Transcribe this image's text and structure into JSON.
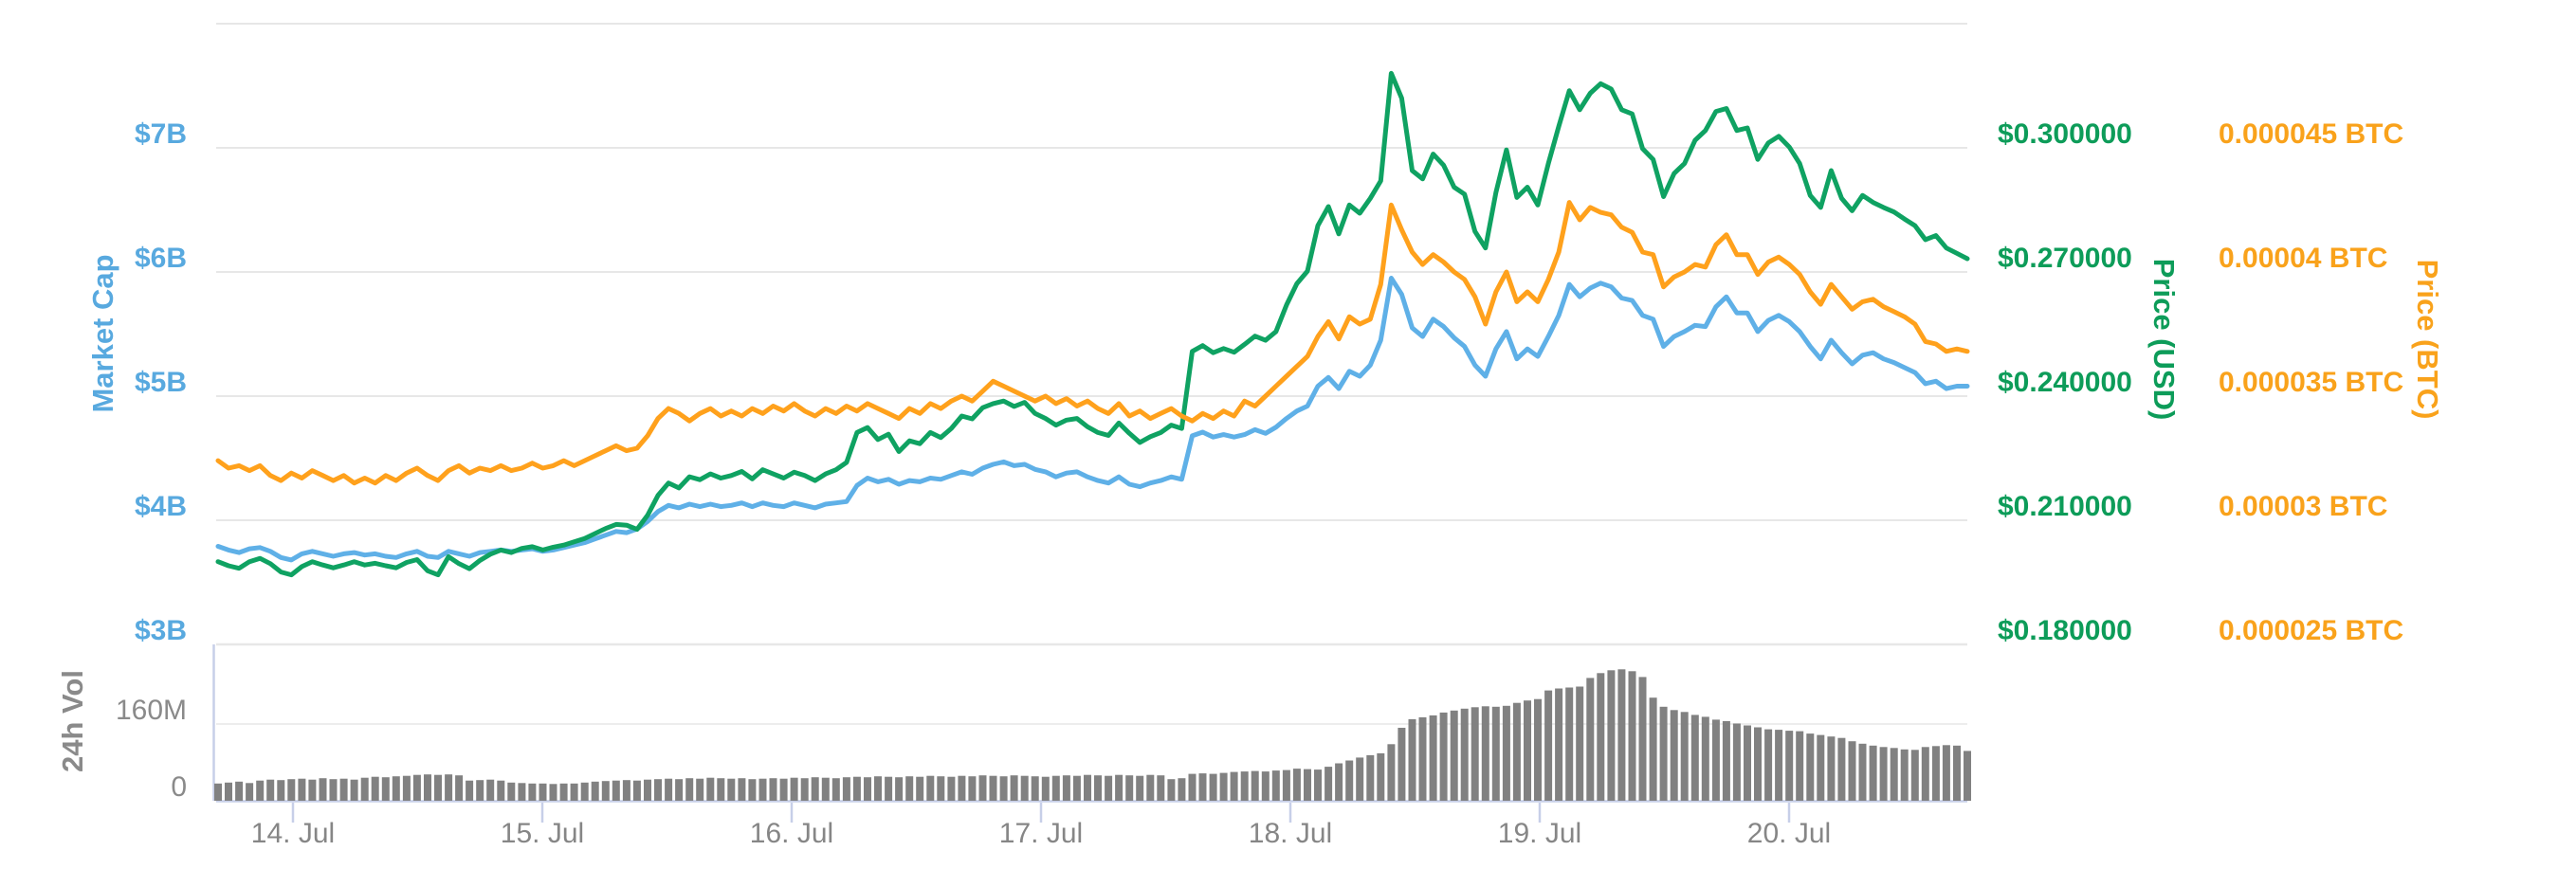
{
  "chart_data": {
    "type": "line",
    "title": "",
    "subtitle": "",
    "legend": "none",
    "grid": true,
    "x_axis": {
      "tick_labels": [
        "14. Jul",
        "15. Jul",
        "16. Jul",
        "17. Jul",
        "18. Jul",
        "19. Jul",
        "20. Jul"
      ],
      "points": 168,
      "note": "about one point per hour, span 13 Jul evening to 20 Jul evening"
    },
    "y_axes": {
      "market_cap": {
        "title": "Market Cap",
        "side": "left",
        "unit": "USD",
        "label_color": "#58a9df",
        "tick_labels": [
          "$3B",
          "$4B",
          "$5B",
          "$6B",
          "$7B"
        ],
        "tick_values": [
          3,
          4,
          5,
          6,
          7
        ],
        "range": [
          3,
          8
        ]
      },
      "price_usd": {
        "title": "Price (USD)",
        "side": "right",
        "unit": "USD",
        "label_color": "#0d9c59",
        "tick_labels": [
          "$0.180000",
          "$0.210000",
          "$0.240000",
          "$0.270000",
          "$0.300000"
        ],
        "tick_values": [
          0.18,
          0.21,
          0.24,
          0.27,
          0.3
        ],
        "range": [
          0.18,
          0.33
        ]
      },
      "price_btc": {
        "title": "Price (BTC)",
        "side": "right",
        "unit": "BTC",
        "label_color": "#f9a21b",
        "tick_labels": [
          "0.000025 BTC",
          "0.00003 BTC",
          "0.000035 BTC",
          "0.00004 BTC",
          "0.000045 BTC"
        ],
        "tick_values": [
          2.5e-05,
          3e-05,
          3.5e-05,
          4e-05,
          4.5e-05
        ],
        "range": [
          2.5e-05,
          5e-05
        ]
      },
      "volume": {
        "title": "24h Vol",
        "side": "left",
        "unit": "USD millions",
        "label_color": "#8a8a8a",
        "tick_labels": [
          "0",
          "160M"
        ],
        "tick_values": [
          0,
          160
        ],
        "range": [
          0,
          326
        ]
      }
    },
    "series": [
      {
        "name": "Market Cap",
        "axis": "market_cap",
        "color": "#5fb0e7",
        "unit": "USD billions",
        "values": [
          3.79,
          3.76,
          3.74,
          3.77,
          3.78,
          3.75,
          3.7,
          3.68,
          3.73,
          3.75,
          3.73,
          3.71,
          3.73,
          3.74,
          3.72,
          3.73,
          3.71,
          3.7,
          3.73,
          3.75,
          3.71,
          3.7,
          3.75,
          3.73,
          3.71,
          3.74,
          3.75,
          3.76,
          3.75,
          3.76,
          3.77,
          3.75,
          3.76,
          3.78,
          3.8,
          3.82,
          3.85,
          3.88,
          3.91,
          3.9,
          3.93,
          3.99,
          4.07,
          4.12,
          4.1,
          4.13,
          4.11,
          4.13,
          4.11,
          4.12,
          4.14,
          4.11,
          4.14,
          4.12,
          4.11,
          4.14,
          4.12,
          4.1,
          4.13,
          4.14,
          4.15,
          4.28,
          4.34,
          4.31,
          4.33,
          4.29,
          4.32,
          4.31,
          4.34,
          4.33,
          4.36,
          4.39,
          4.37,
          4.42,
          4.45,
          4.47,
          4.44,
          4.45,
          4.41,
          4.39,
          4.35,
          4.38,
          4.39,
          4.35,
          4.32,
          4.3,
          4.35,
          4.29,
          4.27,
          4.3,
          4.32,
          4.35,
          4.33,
          4.68,
          4.71,
          4.67,
          4.69,
          4.67,
          4.69,
          4.73,
          4.7,
          4.75,
          4.82,
          4.88,
          4.92,
          5.08,
          5.15,
          5.06,
          5.2,
          5.16,
          5.25,
          5.45,
          5.95,
          5.82,
          5.55,
          5.48,
          5.62,
          5.56,
          5.47,
          5.4,
          5.25,
          5.16,
          5.38,
          5.52,
          5.3,
          5.38,
          5.32,
          5.48,
          5.65,
          5.9,
          5.8,
          5.87,
          5.91,
          5.88,
          5.79,
          5.77,
          5.65,
          5.62,
          5.4,
          5.48,
          5.52,
          5.57,
          5.56,
          5.72,
          5.8,
          5.67,
          5.67,
          5.52,
          5.61,
          5.65,
          5.6,
          5.52,
          5.4,
          5.3,
          5.45,
          5.35,
          5.26,
          5.33,
          5.35,
          5.3,
          5.27,
          5.23,
          5.19,
          5.1,
          5.12,
          5.06,
          5.08,
          5.08
        ]
      },
      {
        "name": "Price (USD)",
        "axis": "price_usd",
        "color": "#0fa262",
        "unit": "USD",
        "values": [
          0.2,
          0.199,
          0.1984,
          0.2,
          0.2008,
          0.1995,
          0.1975,
          0.1968,
          0.1988,
          0.2,
          0.1992,
          0.1985,
          0.1992,
          0.2,
          0.1992,
          0.1996,
          0.199,
          0.1985,
          0.1998,
          0.2005,
          0.1978,
          0.1968,
          0.2012,
          0.1995,
          0.1983,
          0.2003,
          0.2018,
          0.2028,
          0.2022,
          0.2032,
          0.2036,
          0.2028,
          0.2035,
          0.204,
          0.2048,
          0.2056,
          0.2068,
          0.208,
          0.209,
          0.2088,
          0.2078,
          0.2112,
          0.216,
          0.219,
          0.2178,
          0.2205,
          0.2198,
          0.2212,
          0.2202,
          0.2208,
          0.2218,
          0.22,
          0.2222,
          0.2212,
          0.2202,
          0.2216,
          0.2208,
          0.2196,
          0.2212,
          0.2222,
          0.224,
          0.2312,
          0.2324,
          0.2295,
          0.2308,
          0.2266,
          0.2292,
          0.2285,
          0.2312,
          0.23,
          0.2322,
          0.2352,
          0.2345,
          0.2372,
          0.2382,
          0.2388,
          0.2375,
          0.2385,
          0.2358,
          0.2346,
          0.233,
          0.2342,
          0.2346,
          0.2326,
          0.2312,
          0.2305,
          0.2335,
          0.231,
          0.2288,
          0.2302,
          0.2312,
          0.233,
          0.2322,
          0.2508,
          0.2522,
          0.2505,
          0.2515,
          0.2506,
          0.2525,
          0.2545,
          0.2535,
          0.2556,
          0.262,
          0.2672,
          0.2702,
          0.2812,
          0.2858,
          0.2792,
          0.2862,
          0.2842,
          0.2878,
          0.292,
          0.318,
          0.312,
          0.2945,
          0.2925,
          0.2985,
          0.2958,
          0.2905,
          0.2888,
          0.2798,
          0.2758,
          0.2892,
          0.2995,
          0.288,
          0.2905,
          0.2862,
          0.2962,
          0.3052,
          0.3138,
          0.3092,
          0.3132,
          0.3155,
          0.3142,
          0.3092,
          0.3082,
          0.2998,
          0.2972,
          0.2882,
          0.2938,
          0.2962,
          0.3018,
          0.3042,
          0.3088,
          0.3095,
          0.3042,
          0.3048,
          0.2972,
          0.3012,
          0.3028,
          0.3002,
          0.2962,
          0.2885,
          0.2856,
          0.2945,
          0.2878,
          0.2848,
          0.2885,
          0.2868,
          0.2856,
          0.2845,
          0.2828,
          0.2812,
          0.2778,
          0.2788,
          0.2758,
          0.2745,
          0.2732
        ]
      },
      {
        "name": "Price (BTC)",
        "axis": "price_btc",
        "color": "#ffa11c",
        "unit": "BTC",
        "values": [
          3.24e-05,
          3.21e-05,
          3.22e-05,
          3.2e-05,
          3.22e-05,
          3.18e-05,
          3.16e-05,
          3.19e-05,
          3.17e-05,
          3.2e-05,
          3.18e-05,
          3.16e-05,
          3.18e-05,
          3.15e-05,
          3.17e-05,
          3.15e-05,
          3.18e-05,
          3.16e-05,
          3.19e-05,
          3.21e-05,
          3.18e-05,
          3.16e-05,
          3.2e-05,
          3.22e-05,
          3.19e-05,
          3.21e-05,
          3.2e-05,
          3.22e-05,
          3.2e-05,
          3.21e-05,
          3.23e-05,
          3.21e-05,
          3.22e-05,
          3.24e-05,
          3.22e-05,
          3.24e-05,
          3.26e-05,
          3.28e-05,
          3.3e-05,
          3.28e-05,
          3.29e-05,
          3.34e-05,
          3.41e-05,
          3.45e-05,
          3.43e-05,
          3.4e-05,
          3.43e-05,
          3.45e-05,
          3.42e-05,
          3.44e-05,
          3.42e-05,
          3.45e-05,
          3.43e-05,
          3.46e-05,
          3.44e-05,
          3.47e-05,
          3.44e-05,
          3.42e-05,
          3.45e-05,
          3.43e-05,
          3.46e-05,
          3.44e-05,
          3.47e-05,
          3.45e-05,
          3.43e-05,
          3.41e-05,
          3.45e-05,
          3.43e-05,
          3.47e-05,
          3.45e-05,
          3.48e-05,
          3.5e-05,
          3.48e-05,
          3.52e-05,
          3.56e-05,
          3.54e-05,
          3.52e-05,
          3.5e-05,
          3.48e-05,
          3.5e-05,
          3.47e-05,
          3.49e-05,
          3.46e-05,
          3.48e-05,
          3.45e-05,
          3.43e-05,
          3.47e-05,
          3.42e-05,
          3.44e-05,
          3.41e-05,
          3.43e-05,
          3.45e-05,
          3.42e-05,
          3.4e-05,
          3.43e-05,
          3.41e-05,
          3.44e-05,
          3.42e-05,
          3.48e-05,
          3.46e-05,
          3.5e-05,
          3.54e-05,
          3.58e-05,
          3.62e-05,
          3.66e-05,
          3.74e-05,
          3.8e-05,
          3.73e-05,
          3.82e-05,
          3.79e-05,
          3.81e-05,
          3.95e-05,
          4.27e-05,
          4.17e-05,
          4.08e-05,
          4.03e-05,
          4.07e-05,
          4.04e-05,
          4e-05,
          3.97e-05,
          3.9e-05,
          3.79e-05,
          3.92e-05,
          4e-05,
          3.88e-05,
          3.92e-05,
          3.88e-05,
          3.97e-05,
          4.08e-05,
          4.28e-05,
          4.21e-05,
          4.26e-05,
          4.24e-05,
          4.23e-05,
          4.18e-05,
          4.16e-05,
          4.08e-05,
          4.07e-05,
          3.94e-05,
          3.98e-05,
          4e-05,
          4.03e-05,
          4.02e-05,
          4.11e-05,
          4.15e-05,
          4.07e-05,
          4.07e-05,
          3.99e-05,
          4.04e-05,
          4.06e-05,
          4.03e-05,
          3.99e-05,
          3.92e-05,
          3.87e-05,
          3.95e-05,
          3.9e-05,
          3.85e-05,
          3.88e-05,
          3.89e-05,
          3.86e-05,
          3.84e-05,
          3.82e-05,
          3.79e-05,
          3.72e-05,
          3.71e-05,
          3.68e-05,
          3.69e-05,
          3.68e-05
        ]
      },
      {
        "name": "24h Vol",
        "type": "bar",
        "axis": "volume",
        "color": "#818181",
        "unit": "USD millions",
        "values": [
          36,
          38,
          40,
          37,
          42,
          44,
          43,
          45,
          46,
          44,
          47,
          45,
          46,
          44,
          48,
          50,
          49,
          51,
          52,
          54,
          55,
          54,
          55,
          53,
          42,
          43,
          44,
          42,
          38,
          37,
          36,
          36,
          35,
          36,
          36,
          38,
          40,
          41,
          42,
          43,
          42,
          44,
          45,
          46,
          45,
          47,
          46,
          48,
          47,
          46,
          47,
          45,
          46,
          47,
          46,
          48,
          47,
          49,
          48,
          47,
          49,
          50,
          49,
          51,
          50,
          49,
          51,
          50,
          52,
          51,
          50,
          52,
          51,
          53,
          52,
          51,
          53,
          52,
          51,
          50,
          52,
          53,
          52,
          54,
          53,
          52,
          54,
          53,
          52,
          54,
          53,
          45,
          47,
          56,
          57,
          56,
          58,
          60,
          61,
          62,
          61,
          63,
          64,
          67,
          66,
          65,
          71,
          78,
          84,
          90,
          95,
          99,
          118,
          152,
          170,
          174,
          178,
          184,
          188,
          192,
          195,
          197,
          196,
          198,
          204,
          209,
          212,
          230,
          234,
          236,
          238,
          256,
          266,
          272,
          274,
          270,
          258,
          215,
          196,
          189,
          185,
          179,
          175,
          169,
          166,
          161,
          157,
          153,
          149,
          148,
          146,
          145,
          140,
          137,
          134,
          131,
          124,
          119,
          115,
          112,
          110,
          107,
          106,
          112,
          114,
          116,
          115,
          104
        ]
      }
    ],
    "style": {
      "gridline_color": "#e7e7e7",
      "axis_line_color": "#c7cfe8",
      "date_label_color": "#868686",
      "background": "#ffffff"
    }
  }
}
